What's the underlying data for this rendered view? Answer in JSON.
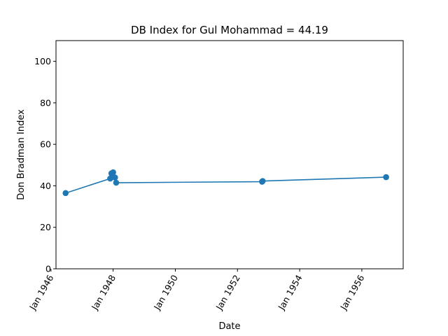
{
  "chart_data": {
    "type": "line",
    "title": "DB Index for Gul Mohammad = 44.19",
    "xlabel": "Date",
    "ylabel": "Don Bradman Index",
    "ylim": [
      0,
      110
    ],
    "xlim": [
      "1946-03-01",
      "1957-05-01"
    ],
    "yticks": [
      0,
      20,
      40,
      60,
      80,
      100
    ],
    "xticks": [
      {
        "date": "1946-01-01",
        "label": "Jan 1946"
      },
      {
        "date": "1948-01-01",
        "label": "Jan 1948"
      },
      {
        "date": "1950-01-01",
        "label": "Jan 1950"
      },
      {
        "date": "1952-01-01",
        "label": "Jan 1952"
      },
      {
        "date": "1954-01-01",
        "label": "Jan 1954"
      },
      {
        "date": "1956-01-01",
        "label": "Jan 1956"
      }
    ],
    "color": "#1f77b4",
    "grid": false,
    "series": [
      {
        "x": [
          "1946-06-22",
          "1947-11-28",
          "1947-12-12",
          "1948-01-01",
          "1948-01-23",
          "1948-02-06",
          "1952-10-16",
          "1952-10-23",
          "1956-10-12"
        ],
        "y": [
          36.5,
          43.5,
          46.0,
          46.5,
          44.0,
          41.5,
          42.0,
          42.3,
          44.19
        ]
      }
    ]
  }
}
